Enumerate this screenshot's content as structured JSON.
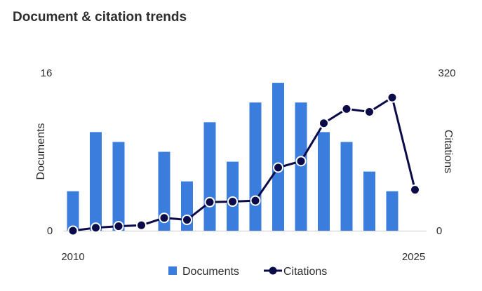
{
  "title": "Document & citation trends",
  "chart_data": {
    "type": "bar+line",
    "title": "Document & citation trends",
    "x": [
      2010,
      2011,
      2012,
      2013,
      2014,
      2015,
      2016,
      2017,
      2018,
      2019,
      2020,
      2021,
      2022,
      2023,
      2024,
      2025
    ],
    "x_tick_labels": [
      "2010",
      "2025"
    ],
    "series": [
      {
        "name": "Documents",
        "type": "bar",
        "axis": "left",
        "color": "#3b7ddd",
        "values": [
          4,
          10,
          9,
          0,
          8,
          5,
          11,
          7,
          13,
          15,
          13,
          10,
          9,
          6,
          4,
          0
        ]
      },
      {
        "name": "Citations",
        "type": "line",
        "axis": "right",
        "color": "#0c0b4a",
        "values": [
          0,
          6,
          9,
          11,
          26,
          22,
          58,
          59,
          61,
          128,
          141,
          218,
          247,
          241,
          270,
          83
        ]
      }
    ],
    "y_left": {
      "label": "Documents",
      "range": [
        0,
        16
      ],
      "ticks": [
        "0",
        "16"
      ]
    },
    "y_right": {
      "label": "Citations",
      "range": [
        0,
        320
      ],
      "ticks": [
        "0",
        "320"
      ]
    },
    "legend": {
      "position": "bottom",
      "entries": [
        "Documents",
        "Citations"
      ]
    },
    "grid": false
  }
}
